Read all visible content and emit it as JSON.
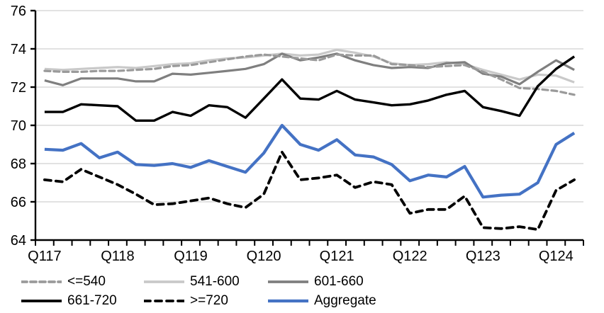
{
  "chart_data": {
    "type": "line",
    "title": "",
    "xlabel": "",
    "ylabel": "",
    "ylim": [
      64,
      76
    ],
    "y_ticks": [
      64,
      66,
      68,
      70,
      72,
      74,
      76
    ],
    "grid": true,
    "legend_position": "bottom",
    "x_tick_labels": [
      "Q117",
      "Q118",
      "Q119",
      "Q120",
      "Q121",
      "Q122",
      "Q123",
      "Q124"
    ],
    "categories": [
      "Q117",
      "Q217",
      "Q317",
      "Q417",
      "Q118",
      "Q218",
      "Q318",
      "Q418",
      "Q119",
      "Q219",
      "Q319",
      "Q419",
      "Q120",
      "Q220",
      "Q320",
      "Q420",
      "Q121",
      "Q221",
      "Q321",
      "Q421",
      "Q122",
      "Q222",
      "Q322",
      "Q422",
      "Q123",
      "Q223",
      "Q323",
      "Q423",
      "Q124",
      "Q224"
    ],
    "series": [
      {
        "name": "541-600",
        "color": "#C9C9C9",
        "dash": "",
        "width": 3.2,
        "values": [
          72.95,
          72.9,
          72.95,
          73.0,
          73.05,
          73.0,
          73.1,
          73.2,
          73.25,
          73.4,
          73.5,
          73.55,
          73.65,
          73.75,
          73.65,
          73.7,
          73.95,
          73.8,
          73.6,
          73.25,
          73.15,
          73.2,
          73.3,
          73.2,
          72.9,
          72.65,
          72.4,
          72.65,
          72.6,
          72.25
        ]
      },
      {
        "name": "601-660",
        "color": "#7F7F7F",
        "dash": "",
        "width": 3.2,
        "values": [
          72.35,
          72.1,
          72.45,
          72.45,
          72.45,
          72.3,
          72.3,
          72.7,
          72.65,
          72.75,
          72.85,
          72.95,
          73.2,
          73.75,
          73.4,
          73.55,
          73.75,
          73.4,
          73.15,
          73.0,
          73.05,
          73.0,
          73.25,
          73.3,
          72.7,
          72.55,
          72.15,
          72.8,
          73.4,
          72.9
        ]
      },
      {
        "name": "<=540",
        "color": "#9A9A9A",
        "dash": "8 5",
        "width": 3.2,
        "values": [
          72.85,
          72.8,
          72.8,
          72.85,
          72.85,
          72.9,
          72.95,
          73.1,
          73.15,
          73.3,
          73.45,
          73.6,
          73.7,
          73.6,
          73.5,
          73.4,
          73.7,
          73.65,
          73.65,
          73.2,
          73.15,
          73.05,
          73.1,
          73.15,
          72.8,
          72.4,
          71.95,
          71.9,
          71.8,
          71.6
        ]
      },
      {
        "name": "661-720",
        "color": "#000000",
        "dash": "",
        "width": 3.4,
        "values": [
          70.7,
          70.7,
          71.1,
          71.05,
          71.0,
          70.25,
          70.25,
          70.7,
          70.5,
          71.05,
          70.95,
          70.4,
          71.4,
          72.4,
          71.4,
          71.35,
          71.8,
          71.35,
          71.2,
          71.05,
          71.1,
          71.3,
          71.6,
          71.8,
          70.95,
          70.75,
          70.5,
          72.05,
          72.95,
          73.6
        ]
      },
      {
        "name": ">=720",
        "color": "#000000",
        "dash": "9 7",
        "width": 3.8,
        "values": [
          67.15,
          67.05,
          67.7,
          67.3,
          66.9,
          66.4,
          65.85,
          65.9,
          66.05,
          66.2,
          65.9,
          65.7,
          66.4,
          68.6,
          67.15,
          67.25,
          67.4,
          66.75,
          67.05,
          66.9,
          65.4,
          65.6,
          65.6,
          66.3,
          64.65,
          64.6,
          64.7,
          64.55,
          66.6,
          67.15
        ]
      },
      {
        "name": "Aggregate",
        "color": "#4472C4",
        "dash": "",
        "width": 4.2,
        "values": [
          68.75,
          68.7,
          69.05,
          68.3,
          68.6,
          67.95,
          67.9,
          68.0,
          67.8,
          68.15,
          67.85,
          67.55,
          68.55,
          70.0,
          69.0,
          68.7,
          69.25,
          68.45,
          68.35,
          67.95,
          67.1,
          67.4,
          67.3,
          67.85,
          66.25,
          66.35,
          66.4,
          67.0,
          69.0,
          69.6
        ]
      }
    ],
    "legend_order": [
      2,
      0,
      1,
      3,
      4,
      5
    ],
    "gridline_color": "#D9D9D9",
    "axis_color": "#000000"
  }
}
